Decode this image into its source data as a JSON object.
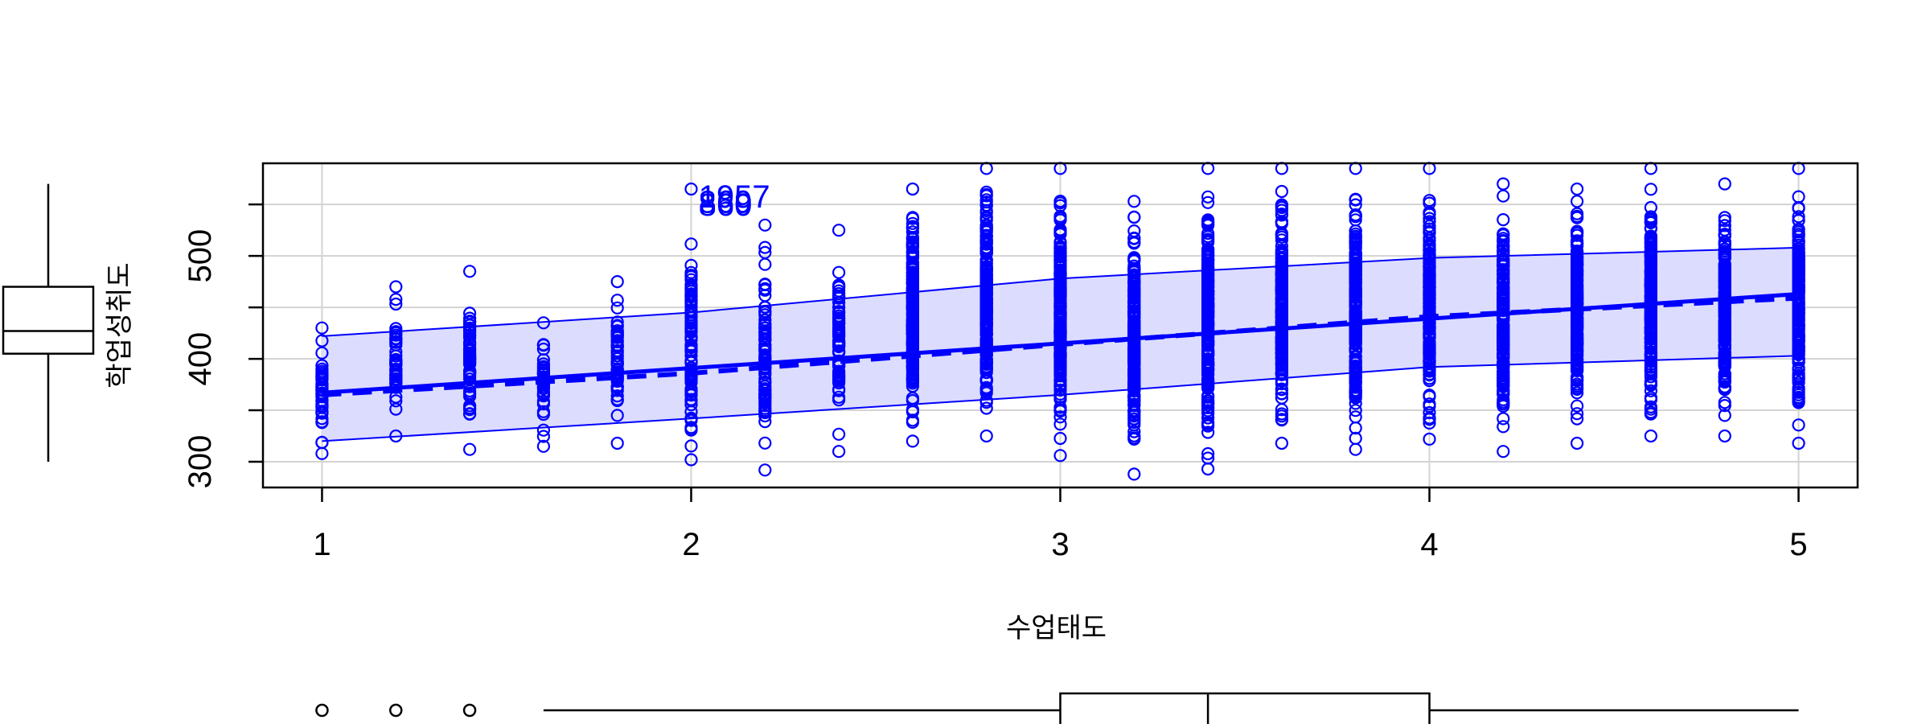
{
  "chart_data": {
    "type": "scatter",
    "title": "",
    "xlabel": "수업태도",
    "ylabel": "학업성취도",
    "xlim": [
      0.84,
      5.16
    ],
    "ylim": [
      275,
      590
    ],
    "x_ticks": [
      "1",
      "2",
      "3",
      "4",
      "5"
    ],
    "y_ticks": [
      "300",
      "400",
      "500"
    ],
    "grid": true,
    "point_color": "#0000ff",
    "band_color": "#dcdcff",
    "x_levels": [
      1.0,
      1.2,
      1.4,
      1.6,
      1.8,
      2.0,
      2.2,
      2.4,
      2.6,
      2.8,
      3.0,
      3.2,
      3.4,
      3.6,
      3.8,
      4.0,
      4.2,
      4.4,
      4.6,
      4.8,
      5.0
    ],
    "y_min_by_level": [
      308,
      325,
      312,
      315,
      318,
      302,
      292,
      310,
      320,
      325,
      306,
      288,
      293,
      318,
      312,
      322,
      310,
      318,
      325,
      325,
      318
    ],
    "y_max_by_level": [
      430,
      470,
      485,
      435,
      475,
      565,
      530,
      525,
      565,
      585,
      585,
      553,
      585,
      585,
      585,
      585,
      570,
      565,
      585,
      570,
      585
    ],
    "fit_line": {
      "x": [
        1,
        5
      ],
      "y": [
        367,
        463
      ]
    },
    "smooth_line": {
      "x": [
        1,
        2,
        3,
        4,
        5
      ],
      "y": [
        365,
        386,
        414,
        441,
        459
      ]
    },
    "ci_upper": {
      "x": [
        1,
        2,
        3,
        4,
        5
      ],
      "y": [
        422,
        445,
        478,
        498,
        508
      ]
    },
    "ci_lower": {
      "x": [
        1,
        2,
        3,
        4,
        5
      ],
      "y": [
        320,
        342,
        365,
        392,
        403
      ]
    },
    "outlier_labels": [
      {
        "text": "1957",
        "x": 2.02,
        "y": 558
      },
      {
        "text": "869",
        "x": 2.02,
        "y": 553
      },
      {
        "text": "860",
        "x": 2.02,
        "y": 550
      }
    ],
    "x_boxplot": {
      "min": 1.6,
      "q1": 3.0,
      "median": 3.4,
      "q3": 4.0,
      "max": 5.0,
      "outliers": [
        1.0,
        1.2,
        1.4
      ]
    },
    "y_boxplot": {
      "min": 300,
      "q1": 405,
      "median": 427,
      "q3": 470,
      "max": 570
    }
  }
}
